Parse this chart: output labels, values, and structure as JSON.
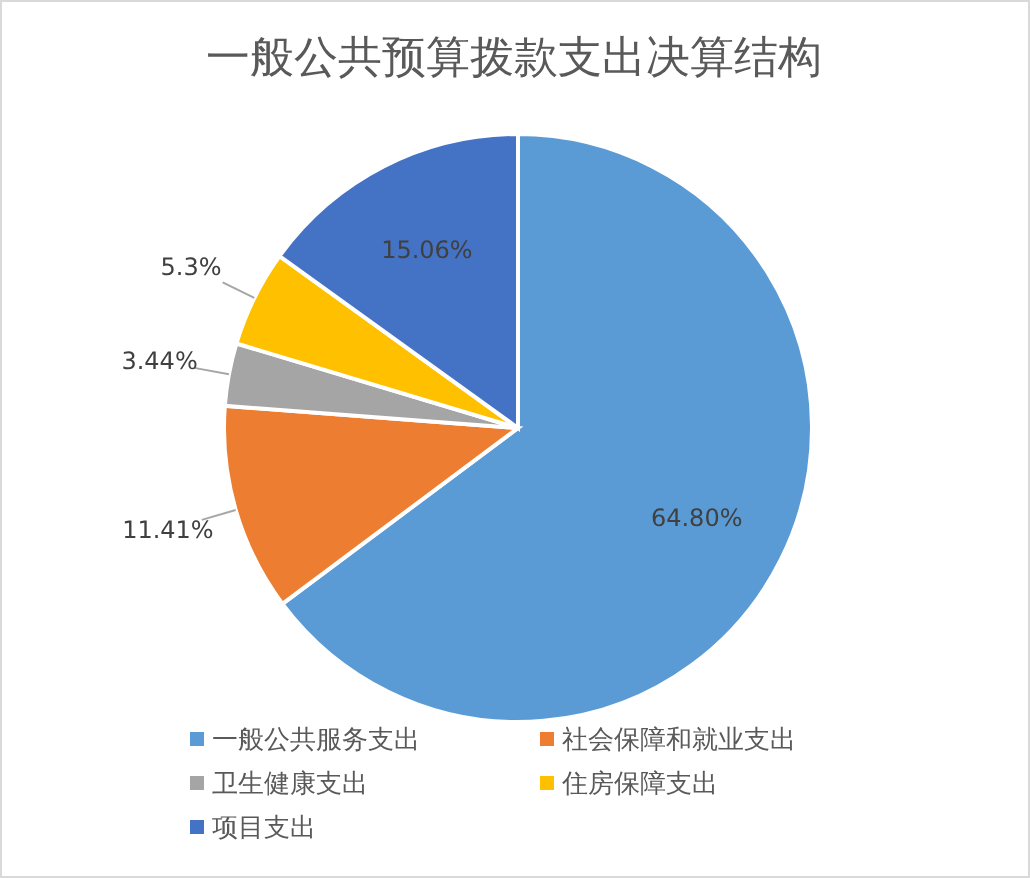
{
  "chart_data": {
    "type": "pie",
    "title": "一般公共预算拨款支出决算结构",
    "categories": [
      "一般公共服务支出",
      "社会保障和就业支出",
      "卫生健康支出",
      "住房保障支出",
      "项目支出"
    ],
    "values": [
      64.8,
      11.41,
      3.44,
      5.3,
      15.06
    ],
    "value_labels": [
      "64.80%",
      "11.41%",
      "3.44%",
      "5.3%",
      "15.06%"
    ],
    "colors": [
      "#5b9bd5",
      "#ed7d31",
      "#a5a5a5",
      "#ffc000",
      "#4472c4"
    ],
    "legend": "bottom"
  }
}
